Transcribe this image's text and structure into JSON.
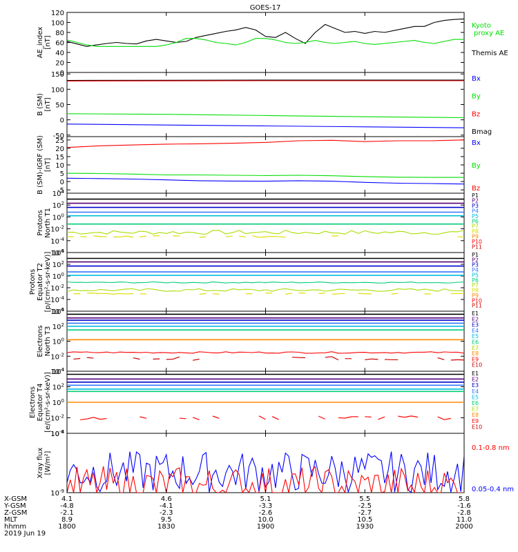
{
  "title": "GOES-17",
  "date_label": "2019 Jun 19",
  "colors": {
    "black": "#000000",
    "red": "#ff0000",
    "green": "#00dd00",
    "blue": "#0000ff",
    "darkred": "#aa0000"
  },
  "chart_data": [
    {
      "type": "line",
      "name": "ae",
      "ylabel": "AE_index\n[nT]",
      "ylim": [
        0,
        120
      ],
      "yticks": [
        "0",
        "20",
        "40",
        "60",
        "80",
        "100",
        "120"
      ],
      "tickvals": [
        0,
        20,
        40,
        60,
        80,
        100,
        120
      ],
      "legend": [
        {
          "label": "Kyoto\nproxy AE",
          "color": "#00dd00"
        },
        {
          "label": "Themis AE",
          "color": "#000000"
        }
      ],
      "series": [
        {
          "name": "Themis AE",
          "color": "#000000",
          "x": [
            0,
            3,
            6,
            9,
            12,
            15,
            18,
            21,
            24,
            27,
            30,
            33,
            36,
            39,
            42,
            45,
            48,
            51,
            54,
            57,
            60,
            63,
            66,
            69,
            72,
            75,
            78,
            81,
            84,
            87,
            90,
            93,
            96,
            99,
            102,
            105,
            108,
            111,
            114,
            117,
            120
          ],
          "y": [
            62,
            57,
            52,
            55,
            58,
            60,
            58,
            57,
            63,
            66,
            63,
            60,
            62,
            70,
            74,
            78,
            82,
            85,
            90,
            85,
            72,
            70,
            80,
            68,
            58,
            80,
            96,
            88,
            80,
            82,
            78,
            82,
            80,
            84,
            88,
            92,
            92,
            100,
            104,
            106,
            107
          ]
        },
        {
          "name": "Kyoto proxy AE",
          "color": "#00dd00",
          "x": [
            0,
            3,
            6,
            9,
            12,
            15,
            18,
            21,
            24,
            27,
            30,
            33,
            36,
            39,
            42,
            45,
            48,
            51,
            54,
            57,
            60,
            63,
            66,
            69,
            72,
            75,
            78,
            81,
            84,
            87,
            90,
            93,
            96,
            99,
            102,
            105,
            108,
            111,
            114,
            117,
            120
          ],
          "y": [
            65,
            60,
            55,
            52,
            52,
            52,
            52,
            52,
            52,
            52,
            55,
            60,
            68,
            68,
            65,
            60,
            58,
            55,
            60,
            68,
            68,
            65,
            60,
            58,
            60,
            64,
            60,
            58,
            60,
            62,
            58,
            56,
            58,
            60,
            62,
            64,
            60,
            58,
            62,
            66,
            66
          ]
        }
      ]
    },
    {
      "type": "line",
      "name": "bsm",
      "ylabel": "B (SM)\n[nT]",
      "ylim": [
        -55,
        155
      ],
      "yticks": [
        "-50",
        "0",
        "50",
        "100",
        "150"
      ],
      "tickvals": [
        -50,
        0,
        50,
        100,
        150
      ],
      "legend": [
        {
          "label": "Bx",
          "color": "#0000ff"
        },
        {
          "label": "By",
          "color": "#00dd00"
        },
        {
          "label": "Bz",
          "color": "#ff0000"
        },
        {
          "label": "Bmag",
          "color": "#000000"
        }
      ],
      "series": [
        {
          "name": "Bmag",
          "color": "#000000",
          "x": [
            0,
            60,
            120
          ],
          "y": [
            129,
            130,
            130
          ]
        },
        {
          "name": "Bz",
          "color": "#ff0000",
          "x": [
            0,
            60,
            120
          ],
          "y": [
            127,
            128,
            128
          ]
        },
        {
          "name": "By",
          "color": "#00dd00",
          "x": [
            0,
            30,
            60,
            90,
            120
          ],
          "y": [
            20,
            18,
            14,
            10,
            7
          ]
        },
        {
          "name": "Bx",
          "color": "#0000ff",
          "x": [
            0,
            30,
            60,
            90,
            120
          ],
          "y": [
            -14,
            -17,
            -20,
            -23,
            -26
          ]
        }
      ]
    },
    {
      "type": "line",
      "name": "bigrf",
      "ylabel": "B (SM)-IGRF (SM)\n[nT]",
      "ylim": [
        -7,
        27
      ],
      "yticks": [
        "-5",
        "0",
        "5",
        "10",
        "15",
        "20",
        "25"
      ],
      "tickvals": [
        -5,
        0,
        5,
        10,
        15,
        20,
        25
      ],
      "legend": [
        {
          "label": "Bx",
          "color": "#0000ff"
        },
        {
          "label": "By",
          "color": "#00dd00"
        },
        {
          "label": "Bz",
          "color": "#ff0000"
        }
      ],
      "series": [
        {
          "name": "Bz",
          "color": "#ff0000",
          "x": [
            0,
            10,
            20,
            30,
            40,
            50,
            60,
            70,
            80,
            90,
            100,
            110,
            120
          ],
          "y": [
            20.5,
            21.5,
            22,
            22.5,
            22.7,
            23,
            23.5,
            24.5,
            24.8,
            24,
            24.5,
            24.5,
            25
          ]
        },
        {
          "name": "By",
          "color": "#00dd00",
          "x": [
            0,
            10,
            20,
            30,
            40,
            50,
            60,
            70,
            80,
            90,
            100,
            110,
            120
          ],
          "y": [
            5,
            4.8,
            4.5,
            4,
            4,
            3.8,
            3.6,
            3.8,
            3.5,
            3,
            2.6,
            2.5,
            2.5
          ]
        },
        {
          "name": "Bx",
          "color": "#0000ff",
          "x": [
            0,
            10,
            20,
            30,
            40,
            50,
            60,
            70,
            80,
            90,
            100,
            110,
            120
          ],
          "y": [
            2,
            1.8,
            1.5,
            1,
            0.5,
            0.3,
            0.2,
            0.5,
            0.2,
            -0.5,
            -1,
            -1.2,
            -1.5
          ]
        }
      ]
    },
    {
      "type": "line",
      "name": "p_north",
      "ylabel": "Protons\nNorth T1",
      "log": true,
      "ylim_exp": [
        -6,
        4
      ],
      "yticks": [
        "10^-6",
        "10^-4",
        "10^-2",
        "10^0",
        "10^2",
        "10^4"
      ],
      "tickexp": [
        -6,
        -4,
        -2,
        0,
        2,
        4
      ],
      "legend": [
        {
          "label": "P1",
          "color": "#000000"
        },
        {
          "label": "P2",
          "color": "#550077"
        },
        {
          "label": "P3",
          "color": "#0000cc"
        },
        {
          "label": "P4",
          "color": "#3377ff"
        },
        {
          "label": "P5",
          "color": "#00bbdd"
        },
        {
          "label": "P6",
          "color": "#00cc77"
        },
        {
          "label": "P7",
          "color": "#aadd00"
        },
        {
          "label": "P8",
          "color": "#dddd00"
        },
        {
          "label": "P9",
          "color": "#ff8800"
        },
        {
          "label": "P10",
          "color": "#ff0000"
        },
        {
          "label": "P11",
          "color": "#cc0000"
        }
      ],
      "series": [
        {
          "name": "P1",
          "color": "#000000",
          "level": 3.0
        },
        {
          "name": "P2",
          "color": "#550077",
          "level": 2.3
        },
        {
          "name": "P3",
          "color": "#0000cc",
          "level": 1.6
        },
        {
          "name": "P4",
          "color": "#3377ff",
          "level": 0.8
        },
        {
          "name": "P5",
          "color": "#00bbdd",
          "level": 0.2
        },
        {
          "name": "P6",
          "color": "#00cc77",
          "level": -1.2
        },
        {
          "name": "P7",
          "color": "#aadd00",
          "level": -2.6,
          "noise": 0.7
        },
        {
          "name": "P8",
          "color": "#dddd00",
          "level": -3.3,
          "noise": 0.3,
          "partial": true
        }
      ]
    },
    {
      "type": "line",
      "name": "p_equator",
      "ylabel": "Protons\nEquator T2\n[p/(cm²-s-sr-keV)]",
      "log": true,
      "ylim_exp": [
        -6,
        4
      ],
      "yticks": [
        "10^-6",
        "10^-4",
        "10^-2",
        "10^0",
        "10^2",
        "10^4"
      ],
      "tickexp": [
        -6,
        -4,
        -2,
        0,
        2,
        4
      ],
      "legend": [
        {
          "label": "P1",
          "color": "#000000"
        },
        {
          "label": "P2",
          "color": "#550077"
        },
        {
          "label": "P3",
          "color": "#0000cc"
        },
        {
          "label": "P4",
          "color": "#3377ff"
        },
        {
          "label": "P5",
          "color": "#00bbdd"
        },
        {
          "label": "P6",
          "color": "#00cc77"
        },
        {
          "label": "P7",
          "color": "#aadd00"
        },
        {
          "label": "P8",
          "color": "#dddd00"
        },
        {
          "label": "P9",
          "color": "#ff8800"
        },
        {
          "label": "P10",
          "color": "#ff0000"
        },
        {
          "label": "P11",
          "color": "#cc0000"
        }
      ],
      "series": [
        {
          "name": "P1",
          "color": "#000000",
          "level": 3.0
        },
        {
          "name": "P2",
          "color": "#550077",
          "level": 2.4
        },
        {
          "name": "P3",
          "color": "#0000cc",
          "level": 1.7
        },
        {
          "name": "P4",
          "color": "#3377ff",
          "level": 0.7
        },
        {
          "name": "P5",
          "color": "#00bbdd",
          "level": 0.1
        },
        {
          "name": "P6",
          "color": "#00cc77",
          "level": -1.1,
          "noise": 0.2
        },
        {
          "name": "P7",
          "color": "#aadd00",
          "level": -2.4,
          "noise": 0.5
        },
        {
          "name": "P8",
          "color": "#dddd00",
          "level": -3.0,
          "noise": 0.2,
          "partial": true
        }
      ]
    },
    {
      "type": "line",
      "name": "e_north",
      "ylabel": "Electrons\nNorth T3",
      "log": true,
      "ylim_exp": [
        -4,
        4
      ],
      "yticks": [
        "10^-4",
        "10^-2",
        "10^0",
        "10^2",
        "10^4"
      ],
      "tickexp": [
        -4,
        -2,
        0,
        2,
        4
      ],
      "legend": [
        {
          "label": "E1",
          "color": "#000000"
        },
        {
          "label": "E2",
          "color": "#550077"
        },
        {
          "label": "E3",
          "color": "#0000cc"
        },
        {
          "label": "E4",
          "color": "#3377ff"
        },
        {
          "label": "E5",
          "color": "#00bbdd"
        },
        {
          "label": "E6",
          "color": "#00cc77"
        },
        {
          "label": "E7",
          "color": "#aadd00"
        },
        {
          "label": "E8",
          "color": "#ff8800"
        },
        {
          "label": "E9",
          "color": "#ff0000"
        },
        {
          "label": "E10",
          "color": "#cc0000"
        }
      ],
      "series": [
        {
          "name": "E1",
          "color": "#000000",
          "level": 3.6
        },
        {
          "name": "E2",
          "color": "#550077",
          "level": 3.1
        },
        {
          "name": "E3",
          "color": "#0000cc",
          "level": 2.8
        },
        {
          "name": "E4",
          "color": "#3377ff",
          "level": 2.4
        },
        {
          "name": "E5",
          "color": "#00bbdd",
          "level": 2.0
        },
        {
          "name": "E6",
          "color": "#00cc77",
          "level": 1.5
        },
        {
          "name": "E7",
          "color": "#ff8800",
          "level": 0.2
        },
        {
          "name": "E8",
          "color": "#ff0000",
          "level": -1.5,
          "noise": 0.2
        },
        {
          "name": "E9",
          "color": "#cc0000",
          "level": -2.3,
          "noise": 0.5,
          "partial": true
        }
      ]
    },
    {
      "type": "line",
      "name": "e_equator",
      "ylabel": "Electrons\nEquator T4\n[e/(cm²-s-sr-keV)]",
      "log": true,
      "ylim_exp": [
        -4,
        4
      ],
      "yticks": [
        "10^-4",
        "10^-2",
        "10^0",
        "10^2",
        "10^4"
      ],
      "tickexp": [
        -4,
        -2,
        0,
        2,
        4
      ],
      "legend": [
        {
          "label": "E1",
          "color": "#000000"
        },
        {
          "label": "E2",
          "color": "#550077"
        },
        {
          "label": "E3",
          "color": "#0000cc"
        },
        {
          "label": "E4",
          "color": "#3377ff"
        },
        {
          "label": "E5",
          "color": "#00bbdd"
        },
        {
          "label": "E6",
          "color": "#00cc77"
        },
        {
          "label": "E7",
          "color": "#aadd00"
        },
        {
          "label": "E8",
          "color": "#ff8800"
        },
        {
          "label": "E9",
          "color": "#ff0000"
        },
        {
          "label": "E10",
          "color": "#cc0000"
        }
      ],
      "series": [
        {
          "name": "E1",
          "color": "#000000",
          "level": 3.6
        },
        {
          "name": "E2",
          "color": "#550077",
          "level": 3.0
        },
        {
          "name": "E3",
          "color": "#0000cc",
          "level": 2.6
        },
        {
          "name": "E4",
          "color": "#3377ff",
          "level": 2.2
        },
        {
          "name": "E5",
          "color": "#00bbdd",
          "level": 1.7
        },
        {
          "name": "E6",
          "color": "#00cc77",
          "level": 1.4
        },
        {
          "name": "E7",
          "color": "#ff8800",
          "level": 0.0
        },
        {
          "name": "E8",
          "color": "#ff0000",
          "level": -2.0,
          "noise": 0.5,
          "partial": true
        }
      ]
    },
    {
      "type": "line",
      "name": "xray",
      "ylabel": "Xray flux\n[W/m²]",
      "log": true,
      "ylim_exp": [
        -9,
        -8
      ],
      "yticks": [
        "10^-9",
        "10^-8"
      ],
      "tickexp": [
        -9,
        -8
      ],
      "legend": [
        {
          "label": "0.1-0.8 nm",
          "color": "#ff0000"
        },
        {
          "label": "0.05-0.4 nm",
          "color": "#0000ff"
        }
      ],
      "series": [
        {
          "name": "0.05-0.4 nm",
          "color": "#0000ff",
          "noise_series": true,
          "base": 0.35,
          "amp": 0.35
        },
        {
          "name": "0.1-0.8 nm",
          "color": "#ff0000",
          "noise_series": true,
          "base": 0.1,
          "amp": 0.35
        }
      ]
    }
  ],
  "xaxis": {
    "xlim": [
      0,
      120
    ],
    "ticks_x": [
      0,
      30,
      60,
      90,
      120
    ],
    "row_labels": [
      "X-GSM",
      "Y-GSM",
      "Z-GSM",
      "MLT",
      "hhmm"
    ],
    "rows": [
      [
        "4.1",
        "4.6",
        "5.1",
        "5.5",
        "5.8"
      ],
      [
        "-4.8",
        "-4.1",
        "-3.3",
        "-2.5",
        "-1.6"
      ],
      [
        "-2.1",
        "-2.3",
        "-2.6",
        "-2.7",
        "-2.8"
      ],
      [
        "8.9",
        "9.5",
        "10.0",
        "10.5",
        "11.0"
      ],
      [
        "1800",
        "1830",
        "1900",
        "1930",
        "2000"
      ]
    ]
  }
}
